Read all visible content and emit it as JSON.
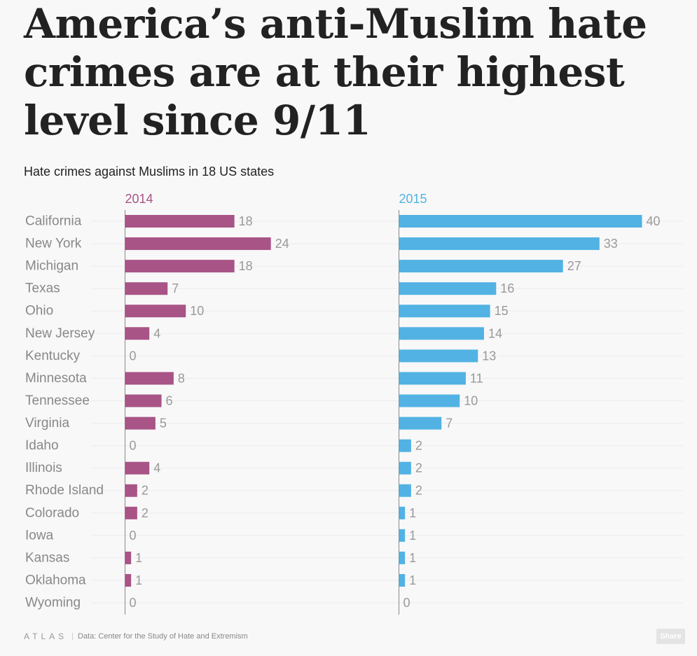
{
  "title": "America’s anti-Muslim hate crimes are at their highest level since 9/11",
  "subtitle": "Hate crimes against Muslims in 18 US states",
  "footer": {
    "logo": "ATLAS",
    "separator": "|",
    "source": "Data: Center for the Study of Hate and Extremism"
  },
  "share_label": "Share",
  "chart_data": {
    "type": "bar",
    "orientation": "horizontal",
    "title": "Hate crimes against Muslims in 18 US states",
    "categories": [
      "California",
      "New York",
      "Michigan",
      "Texas",
      "Ohio",
      "New Jersey",
      "Kentucky",
      "Minnesota",
      "Tennessee",
      "Virginia",
      "Idaho",
      "Illinois",
      "Rhode Island",
      "Colorado",
      "Iowa",
      "Kansas",
      "Oklahoma",
      "Wyoming"
    ],
    "series": [
      {
        "name": "2014",
        "color": "#a85486",
        "values": [
          18,
          24,
          18,
          7,
          10,
          4,
          0,
          8,
          6,
          5,
          0,
          4,
          2,
          2,
          0,
          1,
          1,
          0
        ]
      },
      {
        "name": "2015",
        "color": "#52b2e3",
        "values": [
          40,
          33,
          27,
          16,
          15,
          14,
          13,
          11,
          10,
          7,
          2,
          2,
          2,
          1,
          1,
          1,
          1,
          0
        ]
      }
    ],
    "xlim": [
      0,
      40
    ]
  }
}
